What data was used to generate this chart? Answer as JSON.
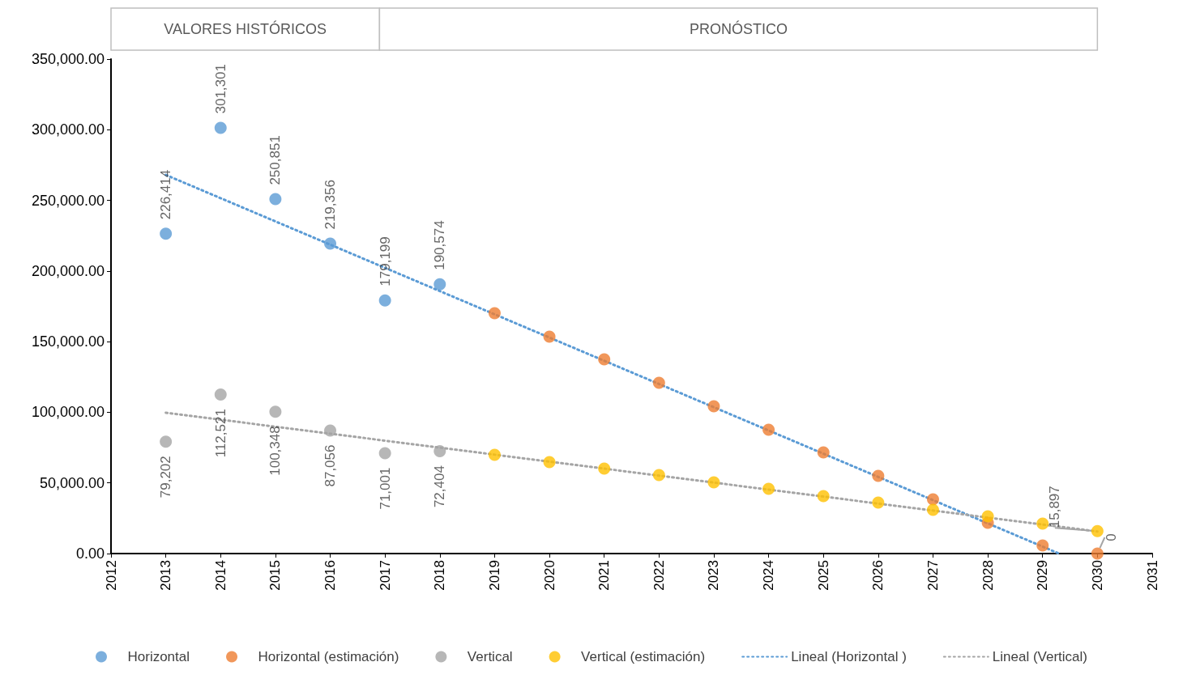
{
  "chart_data": {
    "type": "scatter",
    "annotations": [
      "VALORES HISTÓRICOS",
      "PRONÓSTICO"
    ],
    "series": [
      {
        "name": "Horizontal",
        "color": "#5b9bd5",
        "x": [
          2013,
          2014,
          2015,
          2016,
          2017,
          2018
        ],
        "values": [
          226414,
          301301,
          250851,
          219356,
          179199,
          190574
        ],
        "value_labels": [
          "226,414",
          "301,301",
          "250,851",
          "219,356",
          "179,199",
          "190,574"
        ]
      },
      {
        "name": "Horizontal (estimación)",
        "color": "#ed7d31",
        "x": [
          2019,
          2020,
          2021,
          2022,
          2023,
          2024,
          2025,
          2026,
          2027,
          2028,
          2029,
          2030
        ],
        "values": [
          170100,
          153500,
          137500,
          120900,
          104200,
          87600,
          71600,
          55000,
          38400,
          21800,
          5700,
          0
        ],
        "value_labels": [
          null,
          null,
          null,
          null,
          null,
          null,
          null,
          null,
          null,
          null,
          null,
          "0"
        ]
      },
      {
        "name": "Vertical",
        "color": "#a5a5a5",
        "x": [
          2013,
          2014,
          2015,
          2016,
          2017,
          2018
        ],
        "values": [
          79202,
          112521,
          100348,
          87056,
          71001,
          72404
        ],
        "value_labels": [
          "79,202",
          "112,521",
          "100,348",
          "87,056",
          "71,001",
          "72,404"
        ]
      },
      {
        "name": "Vertical (estimación)",
        "color": "#ffc000",
        "x": [
          2019,
          2020,
          2021,
          2022,
          2023,
          2024,
          2025,
          2026,
          2027,
          2028,
          2029,
          2030
        ],
        "values": [
          69900,
          64700,
          60100,
          55600,
          50400,
          45800,
          40700,
          36100,
          30900,
          26300,
          21200,
          15897
        ],
        "value_labels": [
          null,
          null,
          null,
          null,
          null,
          null,
          null,
          null,
          null,
          null,
          null,
          "15,897"
        ]
      },
      {
        "name": "Lineal (Horizontal )",
        "type": "line",
        "line_style": "dotted",
        "marker": "none",
        "color": "#5b9bd5",
        "x": [
          2013,
          2029.3
        ],
        "values": [
          268000,
          0
        ]
      },
      {
        "name": "Lineal (Vertical)",
        "type": "line",
        "line_style": "dotted",
        "marker": "none",
        "color": "#a5a5a5",
        "x": [
          2013,
          2030
        ],
        "values": [
          99700,
          15600
        ]
      }
    ],
    "marker": "circle",
    "xlim": [
      2012,
      2031
    ],
    "xticks": [
      2012,
      2013,
      2014,
      2015,
      2016,
      2017,
      2018,
      2019,
      2020,
      2021,
      2022,
      2023,
      2024,
      2025,
      2026,
      2027,
      2028,
      2029,
      2030,
      2031
    ],
    "ylim": [
      0,
      350000
    ],
    "yticks": [
      {
        "value": 0,
        "label": "0.00"
      },
      {
        "value": 50000,
        "label": "50,000.00"
      },
      {
        "value": 100000,
        "label": "100,000.00"
      },
      {
        "value": 150000,
        "label": "150,000.00"
      },
      {
        "value": 200000,
        "label": "200,000.00"
      },
      {
        "value": 250000,
        "label": "250,000.00"
      },
      {
        "value": 300000,
        "label": "300,000.00"
      },
      {
        "value": 350000,
        "label": "350,000.00"
      }
    ],
    "grid": false,
    "legend": "bottom"
  }
}
